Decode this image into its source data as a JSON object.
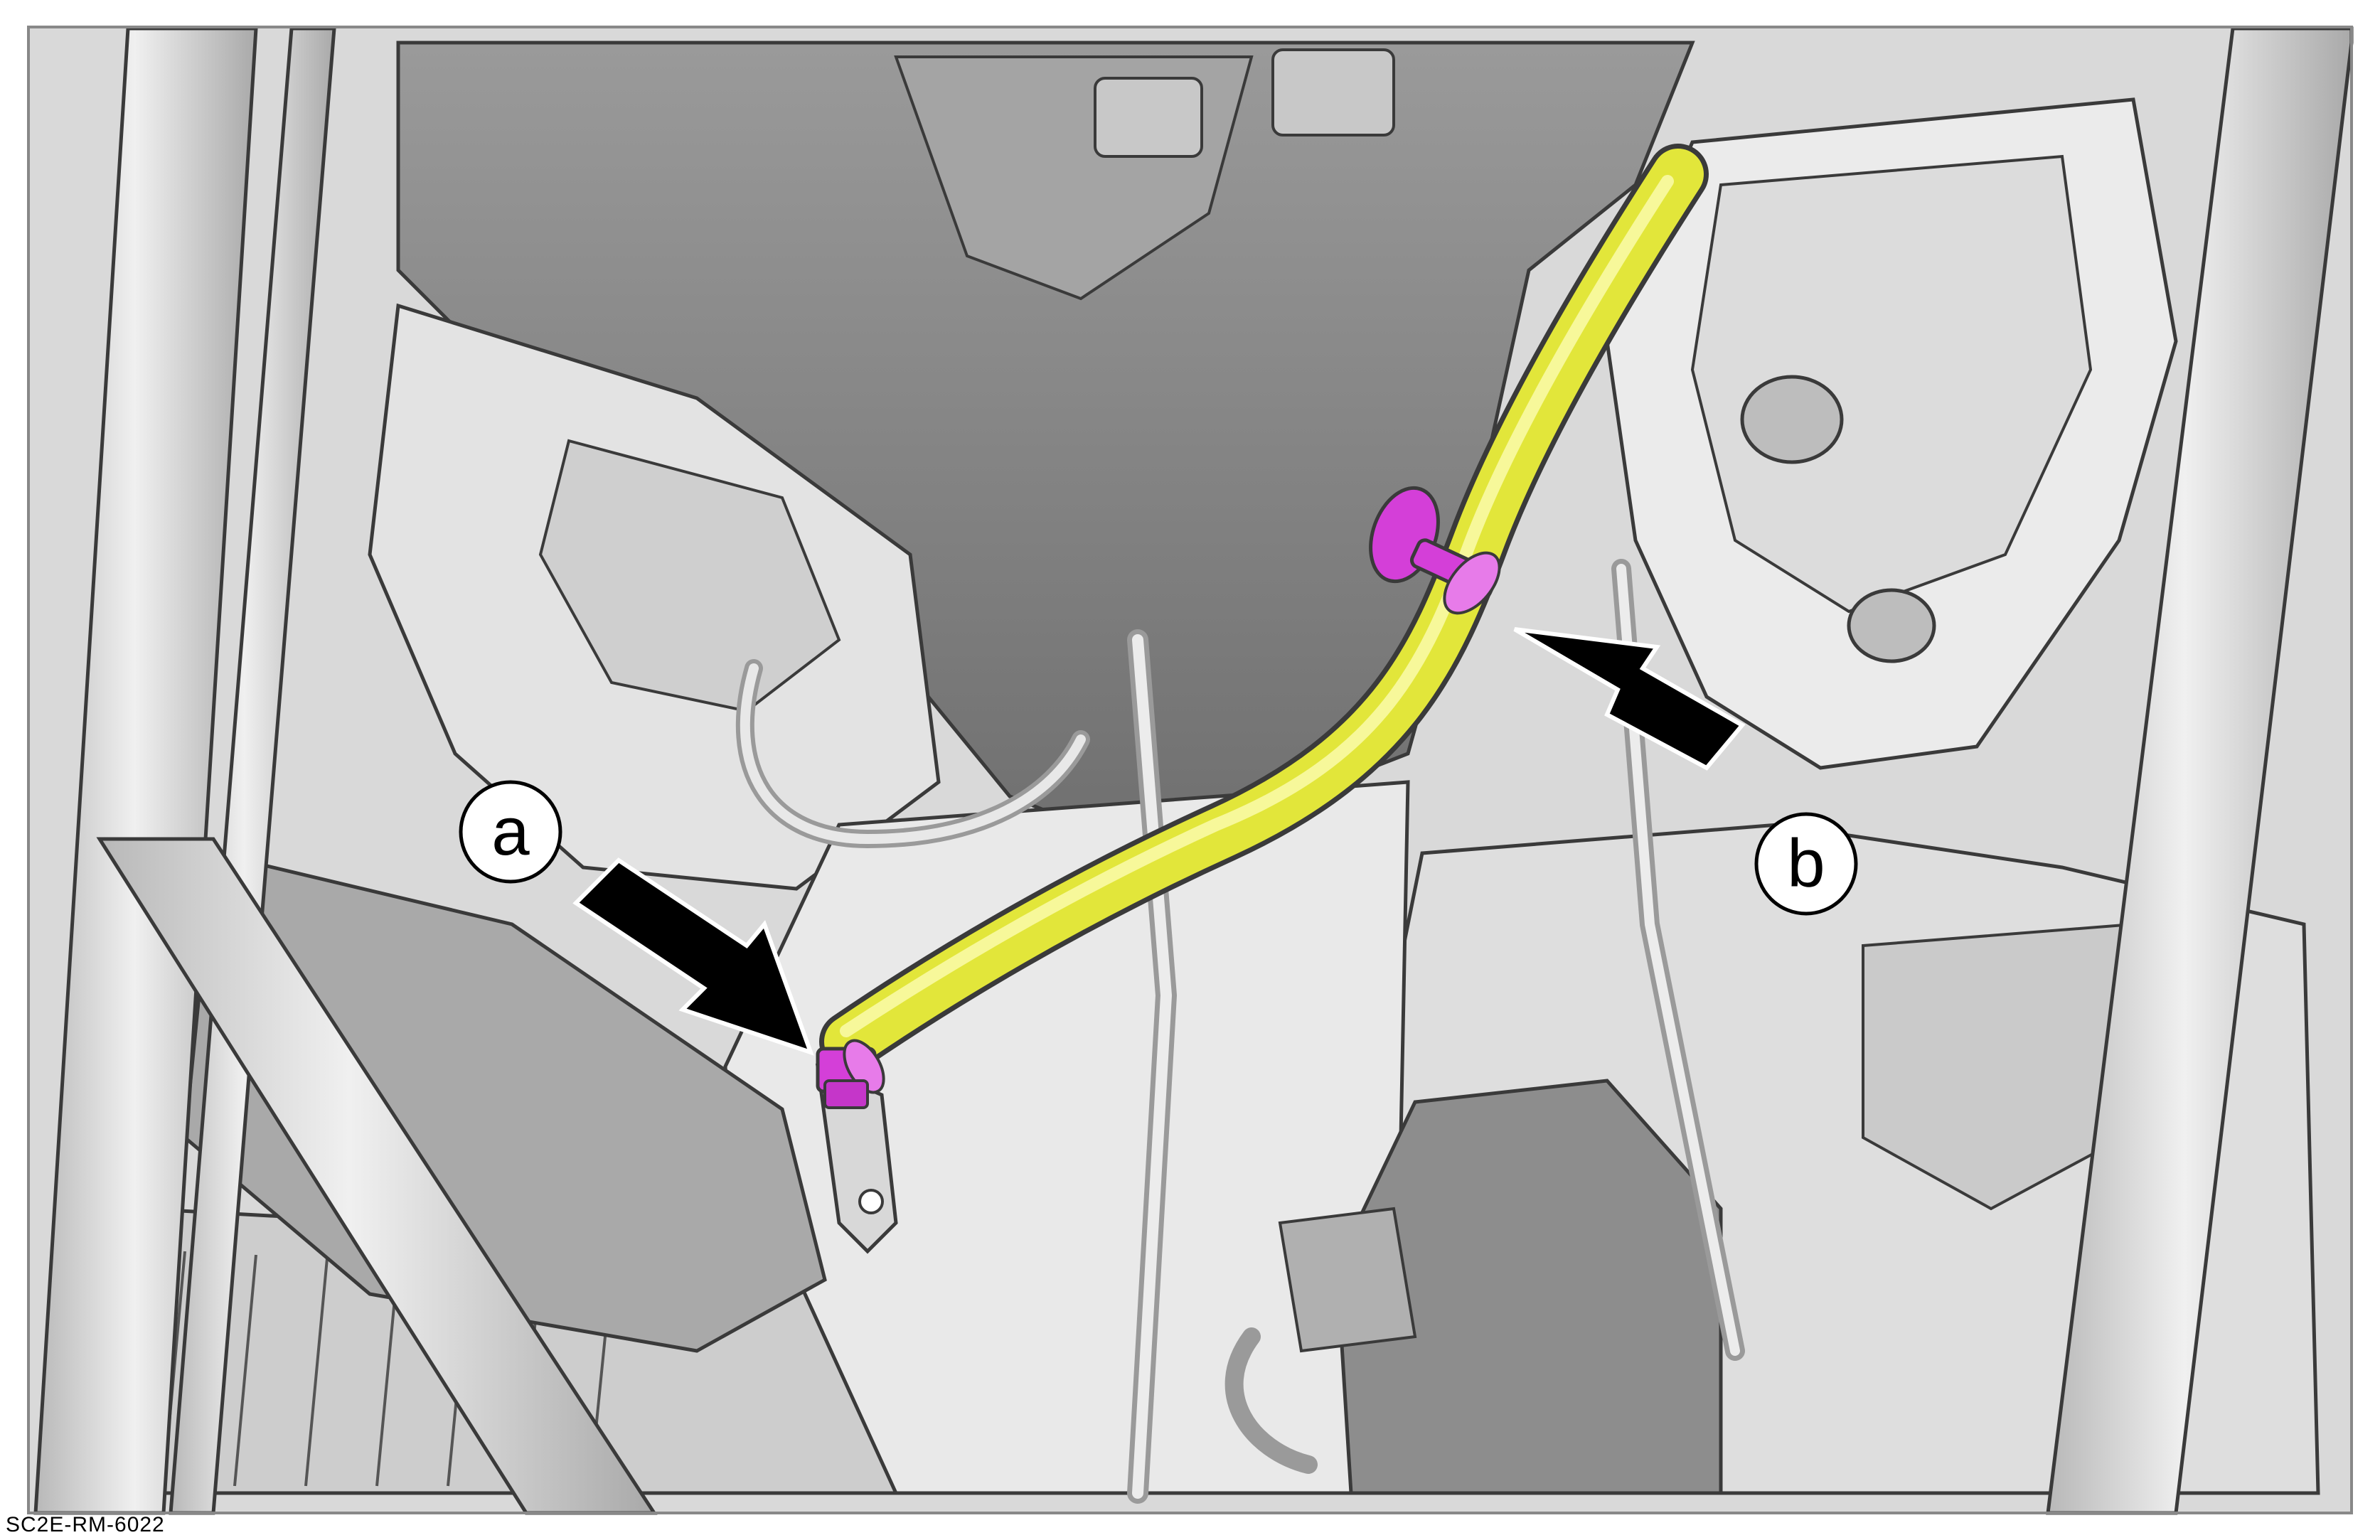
{
  "illustration": {
    "reference_code": "SC2E-RM-6022",
    "callouts": [
      {
        "id": "a",
        "label": "a"
      },
      {
        "id": "b",
        "label": "b"
      }
    ],
    "colors": {
      "background_part": "#cfcfcf",
      "part_light": "#e6e6e6",
      "part_mid": "#b8b8b8",
      "part_dark": "#8a8a8a",
      "outline": "#3a3a3a",
      "highlighted_tube": "#e6ea3c",
      "tube_shadow": "#b7bb1e",
      "clip": "#d43fd8",
      "arrow": "#000000",
      "frame": "#888888"
    }
  }
}
